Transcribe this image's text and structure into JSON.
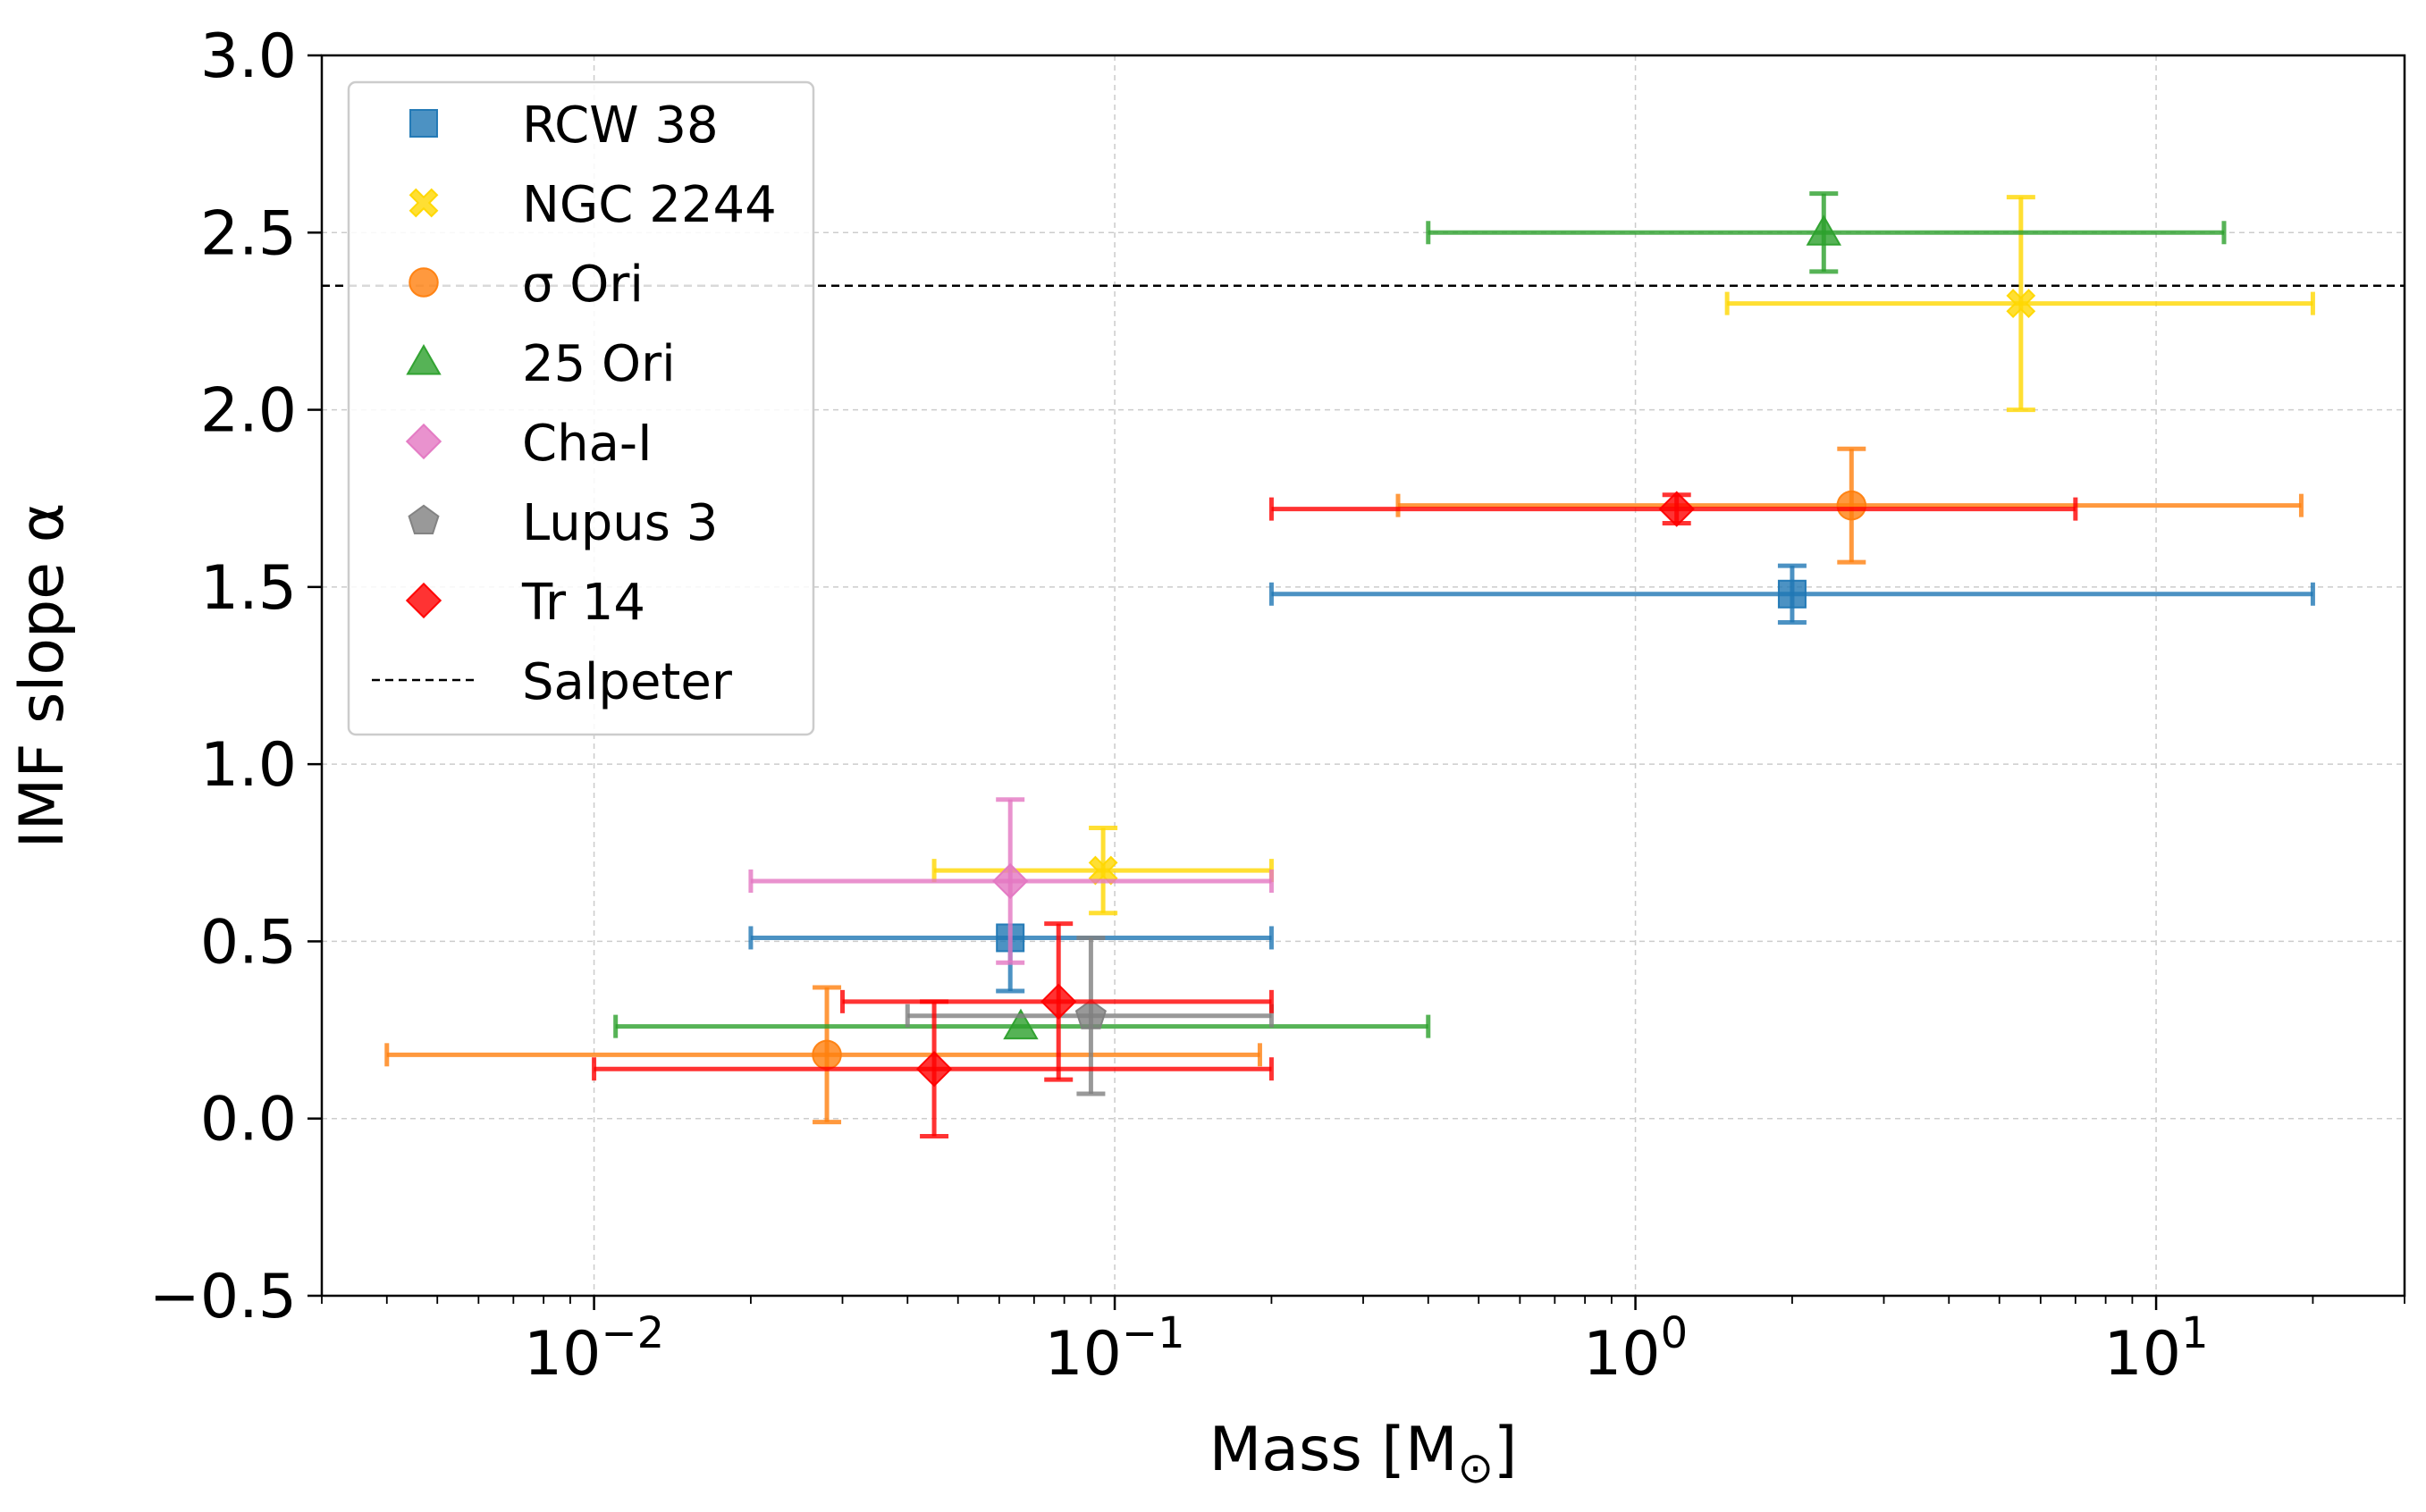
{
  "chart_data": {
    "type": "scatter",
    "title": "",
    "xlabel": "Mass [M⊙]",
    "xlabel_parts": {
      "prefix": "Mass [M",
      "sub": "⊙",
      "suffix": "]"
    },
    "ylabel": "IMF slope α",
    "xscale": "log",
    "xlim": [
      0.003,
      30
    ],
    "ylim": [
      -0.5,
      3.0
    ],
    "grid": true,
    "legend_position": "top-left",
    "x_ticks": [
      {
        "value": 0.01,
        "mantissa": "10",
        "exponent": "−2"
      },
      {
        "value": 0.1,
        "mantissa": "10",
        "exponent": "−1"
      },
      {
        "value": 1,
        "mantissa": "10",
        "exponent": "0"
      },
      {
        "value": 10,
        "mantissa": "10",
        "exponent": "1"
      }
    ],
    "y_ticks": [
      {
        "value": -0.5,
        "label": "−0.5"
      },
      {
        "value": 0.0,
        "label": "0.0"
      },
      {
        "value": 0.5,
        "label": "0.5"
      },
      {
        "value": 1.0,
        "label": "1.0"
      },
      {
        "value": 1.5,
        "label": "1.5"
      },
      {
        "value": 2.0,
        "label": "2.0"
      },
      {
        "value": 2.5,
        "label": "2.5"
      },
      {
        "value": 3.0,
        "label": "3.0"
      }
    ],
    "reference_line": {
      "name": "Salpeter",
      "y": 2.35,
      "color": "#000000",
      "style": "dashed"
    },
    "series": [
      {
        "name": "RCW 38",
        "marker": "square",
        "color": "#1f77b4",
        "points": [
          {
            "x": 0.063,
            "y": 0.51,
            "xmin": 0.02,
            "xmax": 0.2,
            "yerr_low": 0.15,
            "yerr_high": 0.0
          },
          {
            "x": 2.0,
            "y": 1.48,
            "xmin": 0.2,
            "xmax": 20,
            "yerr_low": 0.08,
            "yerr_high": 0.08
          }
        ]
      },
      {
        "name": "NGC 2244",
        "marker": "x",
        "color": "#ffd700",
        "points": [
          {
            "x": 0.095,
            "y": 0.7,
            "xmin": 0.045,
            "xmax": 0.2,
            "yerr_low": 0.12,
            "yerr_high": 0.12
          },
          {
            "x": 5.5,
            "y": 2.3,
            "xmin": 1.5,
            "xmax": 20,
            "yerr_low": 0.3,
            "yerr_high": 0.3
          }
        ]
      },
      {
        "name": "σ Ori",
        "marker": "circle",
        "color": "#ff7f0e",
        "points": [
          {
            "x": 0.028,
            "y": 0.18,
            "xmin": 0.004,
            "xmax": 0.19,
            "yerr_low": 0.19,
            "yerr_high": 0.19
          },
          {
            "x": 2.6,
            "y": 1.73,
            "xmin": 0.35,
            "xmax": 19,
            "yerr_low": 0.16,
            "yerr_high": 0.16
          }
        ]
      },
      {
        "name": "25 Ori",
        "marker": "triangle",
        "color": "#2ca02c",
        "points": [
          {
            "x": 0.066,
            "y": 0.26,
            "xmin": 0.011,
            "xmax": 0.4,
            "yerr_low": 0.0,
            "yerr_high": 0.0
          },
          {
            "x": 2.3,
            "y": 2.5,
            "xmin": 0.4,
            "xmax": 13.5,
            "yerr_low": 0.11,
            "yerr_high": 0.11
          }
        ]
      },
      {
        "name": "Cha-I",
        "marker": "diamond",
        "color": "#e377c2",
        "points": [
          {
            "x": 0.063,
            "y": 0.67,
            "xmin": 0.02,
            "xmax": 0.2,
            "yerr_low": 0.23,
            "yerr_high": 0.23
          }
        ]
      },
      {
        "name": "Lupus 3",
        "marker": "pentagon",
        "color": "#7f7f7f",
        "points": [
          {
            "x": 0.09,
            "y": 0.29,
            "xmin": 0.04,
            "xmax": 0.2,
            "yerr_low": 0.22,
            "yerr_high": 0.22
          }
        ]
      },
      {
        "name": "Tr 14",
        "marker": "diamond",
        "color": "#ff0000",
        "points": [
          {
            "x": 0.045,
            "y": 0.14,
            "xmin": 0.01,
            "xmax": 0.2,
            "yerr_low": 0.19,
            "yerr_high": 0.19
          },
          {
            "x": 0.078,
            "y": 0.33,
            "xmin": 0.03,
            "xmax": 0.2,
            "yerr_low": 0.22,
            "yerr_high": 0.22
          },
          {
            "x": 1.2,
            "y": 1.72,
            "xmin": 0.2,
            "xmax": 7,
            "yerr_low": 0.04,
            "yerr_high": 0.04
          }
        ]
      }
    ]
  }
}
